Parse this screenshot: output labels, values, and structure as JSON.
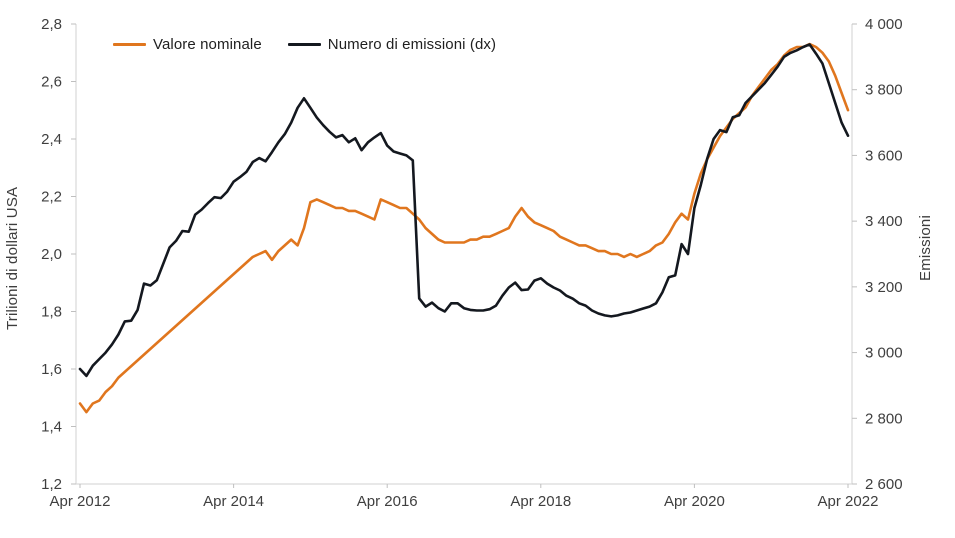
{
  "styles": {
    "background": "#ffffff",
    "axis_line_color": "#d9d9d9",
    "tick_mark_color": "#bfbfbf",
    "tick_text_color": "#3f3f3f",
    "legend_text_color": "#1f1f1f",
    "orange_series_color": "#e0761e",
    "black_series_color": "#14181f"
  },
  "chart_data": {
    "type": "line",
    "title": "",
    "grid": false,
    "legend_position": "top",
    "x_start": "Apr 2012",
    "x_end": "Apr 2022",
    "x_frequency": "monthly",
    "x_tick_labels": [
      "Apr 2012",
      "Apr 2014",
      "Apr 2016",
      "Apr 2018",
      "Apr 2020",
      "Apr 2022"
    ],
    "x_tick_month_index": [
      0,
      24,
      48,
      72,
      96,
      120
    ],
    "left_axis": {
      "title": "Trilioni di dollari USA",
      "min": 1.2,
      "max": 2.8,
      "tick_step": 0.2,
      "tick_labels": [
        "1,2",
        "1,4",
        "1,6",
        "1,8",
        "2,0",
        "2,2",
        "2,4",
        "2,6",
        "2,8"
      ]
    },
    "right_axis": {
      "title": "Emissioni",
      "min": 2600,
      "max": 4000,
      "tick_step": 200,
      "tick_labels": [
        "2 600",
        "2 800",
        "3 000",
        "3 200",
        "3 400",
        "3 600",
        "3 800",
        "4 000"
      ]
    },
    "series": [
      {
        "name": "Valore nominale",
        "axis": "left",
        "color": "#e0761e",
        "values": [
          1.48,
          1.45,
          1.48,
          1.49,
          1.52,
          1.54,
          1.57,
          1.59,
          1.61,
          1.63,
          1.65,
          1.67,
          1.69,
          1.71,
          1.73,
          1.75,
          1.77,
          1.79,
          1.81,
          1.83,
          1.85,
          1.87,
          1.89,
          1.91,
          1.93,
          1.95,
          1.97,
          1.99,
          2.0,
          2.01,
          1.98,
          2.01,
          2.03,
          2.05,
          2.03,
          2.09,
          2.18,
          2.19,
          2.18,
          2.17,
          2.16,
          2.16,
          2.15,
          2.15,
          2.14,
          2.13,
          2.12,
          2.19,
          2.18,
          2.17,
          2.16,
          2.16,
          2.14,
          2.12,
          2.09,
          2.07,
          2.05,
          2.04,
          2.04,
          2.04,
          2.04,
          2.05,
          2.05,
          2.06,
          2.06,
          2.07,
          2.08,
          2.09,
          2.13,
          2.16,
          2.13,
          2.11,
          2.1,
          2.09,
          2.08,
          2.06,
          2.05,
          2.04,
          2.03,
          2.03,
          2.02,
          2.01,
          2.01,
          2.0,
          2.0,
          1.99,
          2.0,
          1.99,
          2.0,
          2.01,
          2.03,
          2.04,
          2.07,
          2.11,
          2.14,
          2.12,
          2.21,
          2.28,
          2.33,
          2.37,
          2.41,
          2.44,
          2.47,
          2.49,
          2.51,
          2.55,
          2.58,
          2.61,
          2.64,
          2.66,
          2.69,
          2.71,
          2.72,
          2.72,
          2.73,
          2.72,
          2.7,
          2.67,
          2.62,
          2.56,
          2.5
        ]
      },
      {
        "name": "Numero di emissioni (dx)",
        "axis": "right",
        "color": "#14181f",
        "values": [
          2950,
          2929,
          2960,
          2980,
          3000,
          3025,
          3055,
          3095,
          3097,
          3130,
          3210,
          3204,
          3220,
          3270,
          3320,
          3340,
          3370,
          3368,
          3420,
          3435,
          3455,
          3473,
          3470,
          3490,
          3520,
          3534,
          3550,
          3580,
          3592,
          3582,
          3610,
          3640,
          3665,
          3700,
          3745,
          3774,
          3745,
          3715,
          3692,
          3672,
          3655,
          3662,
          3640,
          3652,
          3616,
          3640,
          3655,
          3668,
          3630,
          3612,
          3606,
          3600,
          3585,
          3165,
          3140,
          3152,
          3135,
          3125,
          3150,
          3150,
          3135,
          3130,
          3128,
          3128,
          3132,
          3143,
          3173,
          3198,
          3213,
          3190,
          3192,
          3219,
          3226,
          3210,
          3198,
          3189,
          3173,
          3164,
          3150,
          3143,
          3128,
          3119,
          3113,
          3110,
          3113,
          3119,
          3122,
          3128,
          3134,
          3140,
          3150,
          3183,
          3229,
          3235,
          3330,
          3300,
          3440,
          3510,
          3590,
          3650,
          3677,
          3671,
          3716,
          3722,
          3760,
          3780,
          3800,
          3820,
          3845,
          3870,
          3900,
          3912,
          3920,
          3930,
          3938,
          3910,
          3880,
          3820,
          3760,
          3700,
          3660
        ]
      }
    ]
  }
}
